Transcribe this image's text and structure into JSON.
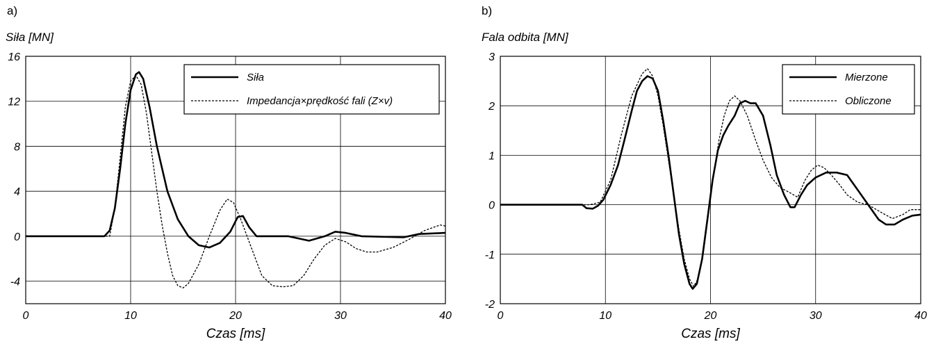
{
  "chart_data": [
    {
      "panel": "a)",
      "type": "line",
      "ylabel": "Siła [MN]",
      "xlabel": "Czas [ms]",
      "xlim": [
        0,
        40
      ],
      "ylim": [
        -6,
        16
      ],
      "xticks": [
        0,
        10,
        20,
        30,
        40
      ],
      "yticks": [
        -4,
        0,
        4,
        8,
        12,
        16
      ],
      "grid": true,
      "legend_position": "top-right",
      "series": [
        {
          "name": "Siła",
          "style": "solid",
          "points": [
            [
              0,
              0
            ],
            [
              7.5,
              0
            ],
            [
              8,
              0.5
            ],
            [
              8.5,
              2.5
            ],
            [
              9,
              6
            ],
            [
              9.5,
              10
            ],
            [
              10,
              13
            ],
            [
              10.5,
              14.4
            ],
            [
              10.8,
              14.6
            ],
            [
              11.2,
              14
            ],
            [
              11.8,
              11.5
            ],
            [
              12.5,
              8
            ],
            [
              13.5,
              4
            ],
            [
              14.5,
              1.5
            ],
            [
              15.5,
              0
            ],
            [
              16.5,
              -0.8
            ],
            [
              17.5,
              -1.0
            ],
            [
              18.5,
              -0.6
            ],
            [
              19.5,
              0.4
            ],
            [
              20.2,
              1.7
            ],
            [
              20.7,
              1.8
            ],
            [
              21.3,
              0.8
            ],
            [
              22,
              0
            ],
            [
              25,
              0
            ],
            [
              27,
              -0.4
            ],
            [
              28.5,
              0
            ],
            [
              29.5,
              0.4
            ],
            [
              30.5,
              0.3
            ],
            [
              32,
              0
            ],
            [
              36,
              -0.1
            ],
            [
              37.5,
              0.2
            ],
            [
              40,
              0.3
            ]
          ]
        },
        {
          "name": "Impedancja×prędkość fali (Z×v)",
          "style": "dashed",
          "points": [
            [
              0,
              0
            ],
            [
              8,
              0
            ],
            [
              8.5,
              2.5
            ],
            [
              9,
              7
            ],
            [
              9.5,
              11.5
            ],
            [
              10,
              13.8
            ],
            [
              10.5,
              14.3
            ],
            [
              11,
              13.5
            ],
            [
              11.5,
              11
            ],
            [
              12,
              7.5
            ],
            [
              12.5,
              4
            ],
            [
              13,
              1
            ],
            [
              13.5,
              -1.5
            ],
            [
              14,
              -3.5
            ],
            [
              14.5,
              -4.4
            ],
            [
              15,
              -4.6
            ],
            [
              15.5,
              -4.2
            ],
            [
              16.5,
              -2.5
            ],
            [
              17.5,
              0
            ],
            [
              18.5,
              2.3
            ],
            [
              19.2,
              3.3
            ],
            [
              19.8,
              3
            ],
            [
              20.5,
              1.5
            ],
            [
              21.5,
              -1
            ],
            [
              22.5,
              -3.5
            ],
            [
              23.5,
              -4.4
            ],
            [
              24.5,
              -4.5
            ],
            [
              25.5,
              -4.4
            ],
            [
              26.5,
              -3.5
            ],
            [
              27.5,
              -2
            ],
            [
              28.5,
              -0.8
            ],
            [
              29.5,
              -0.2
            ],
            [
              30.5,
              -0.5
            ],
            [
              31.5,
              -1.1
            ],
            [
              32.5,
              -1.4
            ],
            [
              33.5,
              -1.4
            ],
            [
              35,
              -1.0
            ],
            [
              36.5,
              -0.3
            ],
            [
              38,
              0.5
            ],
            [
              39.5,
              1.0
            ],
            [
              40,
              0.9
            ]
          ]
        }
      ]
    },
    {
      "panel": "b)",
      "type": "line",
      "ylabel": "Fala odbita [MN]",
      "xlabel": "Czas [ms]",
      "xlim": [
        0,
        40
      ],
      "ylim": [
        -2,
        3
      ],
      "xticks": [
        0,
        10,
        20,
        30,
        40
      ],
      "yticks": [
        -2,
        -1,
        0,
        1,
        2,
        3
      ],
      "grid": true,
      "legend_position": "top-right",
      "series": [
        {
          "name": "Mierzone",
          "style": "solid",
          "points": [
            [
              0,
              0
            ],
            [
              7,
              0
            ],
            [
              7.8,
              0
            ],
            [
              8.2,
              -0.07
            ],
            [
              8.8,
              -0.08
            ],
            [
              9.3,
              -0.02
            ],
            [
              9.8,
              0.1
            ],
            [
              10.5,
              0.4
            ],
            [
              11.2,
              0.8
            ],
            [
              11.8,
              1.3
            ],
            [
              12.5,
              1.9
            ],
            [
              13,
              2.3
            ],
            [
              13.5,
              2.5
            ],
            [
              14,
              2.6
            ],
            [
              14.5,
              2.55
            ],
            [
              15,
              2.3
            ],
            [
              15.5,
              1.7
            ],
            [
              16,
              1.0
            ],
            [
              16.5,
              0.2
            ],
            [
              17,
              -0.6
            ],
            [
              17.5,
              -1.2
            ],
            [
              18,
              -1.6
            ],
            [
              18.3,
              -1.7
            ],
            [
              18.7,
              -1.6
            ],
            [
              19.2,
              -1.1
            ],
            [
              19.7,
              -0.3
            ],
            [
              20.2,
              0.5
            ],
            [
              20.7,
              1.1
            ],
            [
              21.2,
              1.4
            ],
            [
              21.7,
              1.6
            ],
            [
              22.3,
              1.8
            ],
            [
              22.8,
              2.05
            ],
            [
              23.3,
              2.1
            ],
            [
              23.8,
              2.05
            ],
            [
              24.3,
              2.05
            ],
            [
              25,
              1.8
            ],
            [
              25.7,
              1.2
            ],
            [
              26.3,
              0.6
            ],
            [
              27,
              0.2
            ],
            [
              27.6,
              -0.05
            ],
            [
              28,
              -0.05
            ],
            [
              28.6,
              0.2
            ],
            [
              29.2,
              0.4
            ],
            [
              30,
              0.55
            ],
            [
              31,
              0.65
            ],
            [
              32,
              0.65
            ],
            [
              33,
              0.6
            ],
            [
              34,
              0.3
            ],
            [
              35,
              0
            ],
            [
              36,
              -0.3
            ],
            [
              36.7,
              -0.4
            ],
            [
              37.5,
              -0.4
            ],
            [
              38.3,
              -0.3
            ],
            [
              39.2,
              -0.22
            ],
            [
              40,
              -0.2
            ]
          ]
        },
        {
          "name": "Obliczone",
          "style": "dashed",
          "points": [
            [
              0,
              0
            ],
            [
              8.5,
              0
            ],
            [
              9.5,
              0.05
            ],
            [
              10.5,
              0.5
            ],
            [
              11.5,
              1.4
            ],
            [
              12.5,
              2.2
            ],
            [
              13.5,
              2.65
            ],
            [
              14,
              2.75
            ],
            [
              14.5,
              2.6
            ],
            [
              15,
              2.2
            ],
            [
              15.5,
              1.6
            ],
            [
              16,
              0.9
            ],
            [
              16.5,
              0.2
            ],
            [
              17,
              -0.5
            ],
            [
              17.5,
              -1.1
            ],
            [
              18,
              -1.5
            ],
            [
              18.4,
              -1.65
            ],
            [
              18.8,
              -1.5
            ],
            [
              19.3,
              -1.0
            ],
            [
              19.8,
              -0.2
            ],
            [
              20.3,
              0.6
            ],
            [
              20.8,
              1.3
            ],
            [
              21.3,
              1.8
            ],
            [
              21.8,
              2.1
            ],
            [
              22.3,
              2.2
            ],
            [
              22.8,
              2.1
            ],
            [
              23.5,
              1.8
            ],
            [
              24.3,
              1.3
            ],
            [
              25,
              0.9
            ],
            [
              25.8,
              0.55
            ],
            [
              26.6,
              0.35
            ],
            [
              27.5,
              0.25
            ],
            [
              28.3,
              0.15
            ],
            [
              29,
              0.5
            ],
            [
              29.6,
              0.7
            ],
            [
              30.2,
              0.8
            ],
            [
              30.8,
              0.75
            ],
            [
              31.5,
              0.6
            ],
            [
              32.3,
              0.4
            ],
            [
              33,
              0.2
            ],
            [
              34,
              0.05
            ],
            [
              35,
              0
            ],
            [
              36.2,
              -0.15
            ],
            [
              37.3,
              -0.28
            ],
            [
              38.3,
              -0.2
            ],
            [
              39,
              -0.1
            ],
            [
              40,
              -0.1
            ]
          ]
        }
      ]
    }
  ]
}
